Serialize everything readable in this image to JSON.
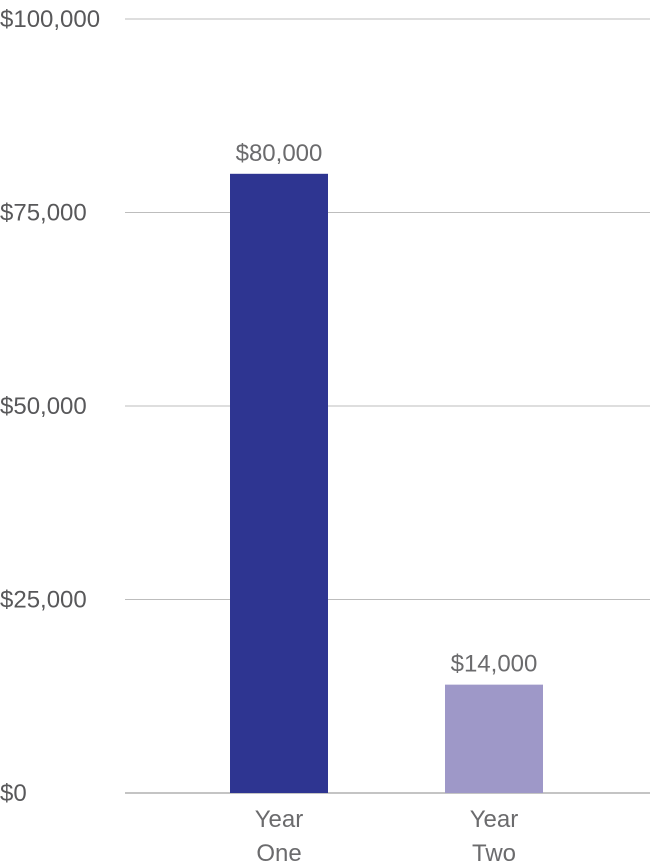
{
  "chart_data": {
    "type": "bar",
    "categories": [
      [
        "Year",
        "One"
      ],
      [
        "Year",
        "Two"
      ]
    ],
    "values": [
      80000,
      14000
    ],
    "data_labels": [
      "$80,000",
      "$14,000"
    ],
    "bar_colors": [
      "#2e3591",
      "#9e98c8"
    ],
    "ylim": [
      0,
      100000
    ],
    "y_ticks": [
      {
        "value": 0,
        "label": "$0"
      },
      {
        "value": 25000,
        "label": "$25,000"
      },
      {
        "value": 50000,
        "label": "$50,000"
      },
      {
        "value": 75000,
        "label": "$75,000"
      },
      {
        "value": 100000,
        "label": "$100,000"
      }
    ],
    "grid": true,
    "title": "",
    "xlabel": "",
    "ylabel": ""
  }
}
